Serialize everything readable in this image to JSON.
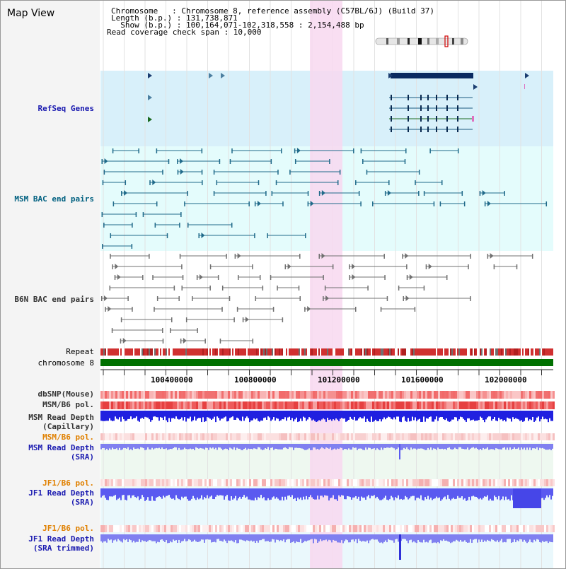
{
  "app": {
    "title": "Map View"
  },
  "header": {
    "chromosome_line": "Chromosome   : Chromosome 8, reference assembly (C57BL/6J) (Build 37)",
    "length_line": "Length (b.p.) : 131,738,871",
    "show_line": "  Show (b.p.) : 100,164,071-102,318,558 : 2,154,488 bp",
    "coverage_line": "Read coverage check span : 10,000"
  },
  "tracks": {
    "refseq": "RefSeq Genes",
    "msm_bac": "MSM BAC end pairs",
    "b6n_bac": "B6N BAC end pairs",
    "repeat": "Repeat",
    "chromosome": "chromosome 8",
    "dbsnp": "dbSNP(Mouse)",
    "msm_b6_pol": "MSM/B6 pol.",
    "msm_depth_cap_1": "MSM Read Depth",
    "msm_depth_cap_2": "(Capillary)",
    "msm_b6_pol_2": "MSM/B6 pol.",
    "msm_depth_sra_1": "MSM Read Depth",
    "msm_depth_sra_2": "(SRA)",
    "jf1_b6_pol": "JF1/B6 pol.",
    "jf1_depth_sra_1": "JF1 Read Depth",
    "jf1_depth_sra_2": "(SRA)",
    "jf1_b6_pol_2": "JF1/B6 pol.",
    "jf1_depth_trim_1": "JF1 Read Depth",
    "jf1_depth_trim_2": "(SRA trimmed)"
  },
  "ruler": {
    "ticks": [
      "100400000",
      "100800000",
      "101200000",
      "101600000",
      "102000000"
    ]
  },
  "colors": {
    "highlight": "#f8d8f0",
    "refseq_bg": "#d8f0fa",
    "bac_bg": "#e4fcfc",
    "chromosome_bar": "#007000",
    "repeat_red": "#d03030",
    "depth_blue": "#2020e0",
    "depth_light": "#8080f0"
  }
}
